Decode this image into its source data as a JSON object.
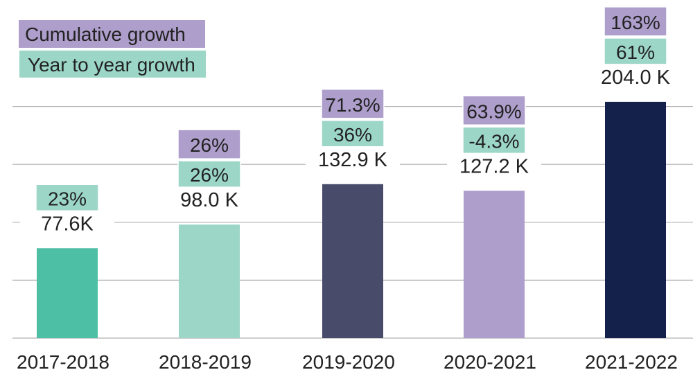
{
  "chart_data": {
    "type": "bar",
    "title": "",
    "xlabel": "",
    "ylabel": "",
    "ylim": [
      0,
      205
    ],
    "grid": true,
    "gridlines": [
      50,
      100,
      150,
      200
    ],
    "legend_placement": "top-left",
    "legend": [
      {
        "label": "Cumulative growth",
        "color": "#AE9ECB"
      },
      {
        "label": "Year to year growth",
        "color": "#9BD6C6"
      }
    ],
    "categories": [
      "2017-2018",
      "2018-2019",
      "2019-2020",
      "2020-2021",
      "2021-2022"
    ],
    "values": [
      77.6,
      98.0,
      132.9,
      127.2,
      204.0
    ],
    "value_labels": [
      "77.6K",
      "98.0 K",
      "132.9 K",
      "127.2 K",
      "204.0 K"
    ],
    "year_to_year_growth": [
      "23%",
      "26%",
      "36%",
      "-4.3%",
      "61%"
    ],
    "cumulative_growth": [
      null,
      "26%",
      "71.3%",
      "63.9%",
      "163%"
    ],
    "bar_colors": [
      "#4DBFA4",
      "#9BD6C6",
      "#494B6A",
      "#AE9ECB",
      "#14214A"
    ]
  }
}
